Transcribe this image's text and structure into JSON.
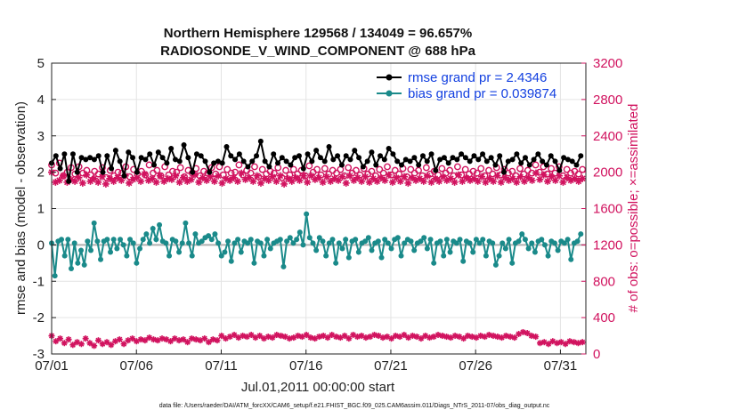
{
  "chart_data": {
    "type": "line",
    "title": [
      "Northern Hemisphere 129568 / 134049 = 96.657%",
      "RADIOSONDE_V_WIND_COMPONENT @ 688 hPa"
    ],
    "xlabel": "Jul.01,2011 00:00:00 start",
    "ylabel": "rmse and bias (model - observation)",
    "ylabel_right": "# of obs: o=possible; ×=assimilated",
    "xlim": [
      0,
      31.5
    ],
    "ylim": [
      -3,
      5
    ],
    "ylim_right": [
      0,
      3200
    ],
    "x_ticks": [
      {
        "v": 0,
        "label": "07/01"
      },
      {
        "v": 5,
        "label": "07/06"
      },
      {
        "v": 10,
        "label": "07/11"
      },
      {
        "v": 15,
        "label": "07/16"
      },
      {
        "v": 20,
        "label": "07/21"
      },
      {
        "v": 25,
        "label": "07/26"
      },
      {
        "v": 30,
        "label": "07/31"
      }
    ],
    "y_ticks": [
      -3,
      -2,
      -1,
      0,
      1,
      2,
      3,
      4,
      5
    ],
    "y_ticks_right": [
      0,
      400,
      800,
      1200,
      1600,
      2000,
      2400,
      2800,
      3200
    ],
    "grid": true,
    "legend_position": "top-right",
    "footer": "data file: /Users/raeder/DAI/ATM_forcXX/CAM6_setup/f.e21.FHIST_BGC.f09_025.CAM6assim.011/Diags_NTrS_2011-07/obs_diag_output.nc",
    "x_step": 0.25,
    "colors": {
      "rmse": "#000000",
      "bias": "#1a8a8a",
      "obs": "#d1135f",
      "zero": "#b0b0b0",
      "legend_text": "#1340e0"
    },
    "series": [
      {
        "name": "rmse grand pr = 2.4346",
        "values": [
          2.25,
          2.45,
          2.1,
          2.5,
          1.75,
          2.5,
          2.0,
          2.4,
          2.35,
          2.4,
          2.35,
          2.45,
          2.0,
          2.45,
          2.1,
          2.6,
          2.3,
          1.9,
          2.55,
          2.4,
          2.0,
          2.4,
          2.35,
          2.5,
          2.2,
          2.55,
          2.4,
          2.25,
          2.65,
          2.35,
          2.3,
          2.75,
          2.4,
          2.0,
          2.5,
          2.45,
          2.3,
          2.0,
          2.25,
          2.3,
          2.25,
          2.7,
          2.45,
          2.35,
          2.5,
          2.3,
          2.15,
          2.3,
          2.45,
          2.85,
          2.3,
          2.15,
          2.5,
          2.25,
          2.4,
          2.3,
          2.2,
          2.4,
          2.45,
          2.1,
          2.5,
          2.3,
          2.6,
          2.4,
          2.3,
          2.7,
          2.35,
          2.45,
          2.2,
          2.45,
          2.35,
          2.6,
          2.4,
          2.15,
          2.3,
          2.55,
          2.2,
          2.45,
          2.35,
          2.65,
          2.5,
          2.3,
          2.2,
          2.35,
          2.3,
          2.4,
          2.2,
          2.45,
          2.3,
          2.5,
          2.05,
          2.35,
          2.4,
          2.25,
          2.4,
          2.35,
          2.5,
          2.4,
          2.3,
          2.45,
          2.35,
          2.5,
          2.3,
          2.4,
          2.2,
          2.45,
          2.0,
          2.3,
          2.35,
          2.5,
          2.25,
          2.4,
          2.2,
          2.35,
          2.5,
          2.3,
          2.2,
          2.45,
          2.3,
          2.05,
          2.4,
          2.35,
          2.3,
          2.2,
          2.45,
          2.25,
          2.35,
          2.3,
          2.2,
          2.45,
          2.3,
          2.25,
          2.4,
          2.3,
          2.35,
          2.3,
          2.4,
          2.3,
          2.5,
          2.25,
          2.35,
          2.3,
          2.4,
          2.35,
          2.2,
          2.3,
          2.15,
          2.25,
          2.4,
          2.35,
          2.3,
          2.15,
          2.3,
          2.25,
          2.35,
          2.3,
          2.2,
          2.3,
          2.25,
          2.2,
          2.2,
          2.3,
          2.35,
          2.2,
          2.3,
          2.25,
          2.35,
          2.3,
          2.4,
          2.25,
          2.95,
          2.6,
          2.5,
          2.3,
          2.25,
          2.4,
          2.2,
          2.45,
          2.3,
          2.35,
          2.4,
          2.2,
          2.25,
          2.5,
          2.35,
          2.3,
          2.4,
          2.3,
          2.15,
          2.35,
          2.3,
          2.4,
          2.2,
          2.25,
          2.35,
          2.3,
          2.2,
          2.4,
          2.3,
          2.15,
          2.3,
          2.25,
          2.4,
          2.3,
          2.2,
          2.3,
          2.35,
          2.25,
          2.3,
          2.1,
          2.3,
          2.2,
          2.35,
          2.25,
          2.3,
          2.2,
          2.1,
          2.3,
          2.25,
          2.35,
          2.2,
          2.3,
          2.15,
          2.25,
          2.3,
          2.2,
          2.15,
          2.3,
          2.25,
          2.4,
          2.2,
          2.25,
          2.3,
          2.2,
          2.1,
          2.3,
          2.25,
          2.1,
          2.3,
          2.2,
          2.15,
          2.3,
          2.2,
          2.25,
          2.3,
          2.35,
          2.2,
          2.3,
          2.05,
          2.2,
          2.3,
          2.25,
          2.15,
          2.2,
          2.3,
          2.25,
          2.35,
          2.3,
          2.2,
          2.3,
          2.25,
          2.2,
          2.3,
          2.35,
          2.4,
          2.2,
          2.3,
          2.25,
          2.15,
          1.95,
          2.3,
          2.25,
          2.2,
          2.15,
          2.3,
          2.2,
          2.25,
          2.3,
          2.15,
          2.0,
          2.2,
          2.3,
          2.25,
          2.15,
          2.3,
          2.2,
          2.15,
          2.3,
          2.25,
          2.2,
          2.3,
          2.15,
          2.25,
          2.2,
          2.3,
          2.25,
          2.15,
          2.3,
          2.2,
          2.25,
          2.1,
          2.3,
          2.25,
          2.2,
          2.15,
          2.2,
          2.3,
          2.2,
          2.25,
          2.1,
          2.3,
          2.2,
          2.25,
          2.15,
          2.3,
          2.2,
          2.0,
          2.3,
          2.2,
          2.1,
          2.3,
          2.2,
          2.15,
          2.3,
          2.2,
          2.25,
          2.1,
          2.3,
          2.2,
          2.15,
          2.3,
          2.2,
          2.25,
          2.1,
          2.3,
          2.2,
          2.15,
          2.3,
          2.25,
          2.2,
          2.1,
          2.3,
          2.2,
          2.15,
          2.2,
          2.3,
          2.2,
          2.15,
          2.3,
          2.2,
          2.25,
          2.15,
          2.3,
          2.2,
          2.1,
          2.3,
          2.2,
          2.25,
          2.15,
          2.3,
          2.2,
          2.1,
          2.3,
          2.25,
          2.2,
          2.15,
          2.3,
          2.2,
          2.25,
          2.15,
          2.3,
          2.2,
          2.1,
          2.25,
          2.2,
          2.15,
          2.3,
          2.2,
          2.25,
          2.15,
          2.3,
          2.2,
          2.1,
          2.3,
          2.2,
          2.25,
          2.15,
          2.3,
          2.2,
          2.1,
          2.3,
          2.2,
          2.15,
          2.3,
          2.2,
          2.25,
          2.15,
          2.3,
          2.2,
          2.1,
          2.3,
          2.2,
          2.15
        ]
      },
      {
        "name": "bias grand pr = 0.039874",
        "values": [
          0.05,
          -0.85,
          0.1,
          0.15,
          -0.3,
          0.15,
          -0.65,
          0.05,
          -0.5,
          -0.15,
          -0.55,
          0.1,
          -0.15,
          0.6,
          0.1,
          -0.4,
          0.1,
          0.15,
          -0.2,
          0.15,
          -0.1,
          0.15,
          0.0,
          -0.3,
          0.15,
          0.05,
          -0.5,
          -0.1,
          0.15,
          0.3,
          0.05,
          0.45,
          0.15,
          0.55,
          0.1,
          0.05,
          -0.3,
          0.15,
          0.1,
          -0.2,
          0.05,
          0.6,
          0.05,
          -0.3,
          0.3,
          0.05,
          0.1,
          0.2,
          0.25,
          0.15,
          0.3,
          0.05,
          -0.3,
          -0.2,
          0.1,
          -0.45,
          0.05,
          0.15,
          -0.2,
          0.1,
          0.05,
          0.15,
          -0.5,
          0.1,
          0.05,
          -0.3,
          0.15,
          -0.1,
          0.05,
          0.1,
          0.15,
          -0.6,
          0.1,
          0.2,
          0.05,
          0.15,
          0.35,
          0.0,
          0.85,
          0.2,
          0.05,
          -0.15,
          0.2,
          0.1,
          -0.3,
          0.05,
          0.15,
          -0.5,
          0.05,
          -0.1,
          0.15,
          -0.35,
          0.1,
          0.15,
          -0.2,
          0.05,
          0.1,
          0.2,
          -0.15,
          0.05,
          0.1,
          -0.35,
          0.15,
          0.05,
          -0.1,
          0.15,
          0.2,
          -0.3,
          0.05,
          0.15,
          0.1,
          -0.15,
          0.05,
          0.1,
          0.2,
          -0.1,
          0.15,
          -0.5,
          0.05,
          0.1,
          -0.3,
          0.15,
          -0.2,
          0.1,
          0.05,
          0.15,
          -0.45,
          0.1,
          0.05,
          -0.2,
          0.15,
          0.05,
          0.15,
          -0.3,
          0.1,
          0.05,
          -0.55,
          -0.3,
          0.05,
          -0.1,
          0.15,
          -0.5,
          0.05,
          0.1,
          0.3,
          0.15,
          -0.1,
          0.05,
          -0.2,
          0.1,
          0.15,
          0.0,
          -0.3,
          0.1,
          0.05,
          -0.15,
          0.1,
          0.05,
          0.15,
          -0.4,
          0.05,
          0.1,
          0.3
        ]
      },
      {
        "name": "possible",
        "values": [
          2080,
          1990,
          2100,
          1960,
          2000,
          2050,
          1980,
          2060,
          1990,
          2020,
          1970,
          2010,
          1980,
          2050,
          1940,
          2020,
          1960,
          2000,
          1990,
          2060,
          1950,
          2030,
          1980,
          2010,
          1970,
          2080,
          1990,
          2020,
          1960,
          2060,
          1970,
          2010,
          2000,
          2050,
          1950,
          2020,
          1990,
          2040,
          1960,
          2010,
          1990,
          2050,
          1980,
          2060,
          1970,
          2030,
          1990,
          2000,
          2080,
          1970,
          2020,
          1990,
          2060,
          1950,
          2030,
          1980,
          2010,
          1990,
          2050,
          1940,
          2020,
          1970,
          2030,
          1980,
          2020,
          1960,
          2070,
          2000,
          2030,
          1970,
          2040,
          1980,
          2020,
          1990,
          2030,
          1960,
          2050,
          1990,
          2020,
          1970,
          2040,
          1980,
          2010,
          1960,
          2030,
          1990,
          2060,
          1970,
          2020,
          1980,
          2040,
          1950,
          2030,
          1990,
          2020,
          1960,
          2050,
          1980,
          2010,
          1970,
          2040,
          1990,
          2020,
          1960,
          2060,
          1970,
          2030,
          1980,
          2010,
          1990,
          2040,
          1960,
          2020,
          1980,
          2050,
          1970,
          2030,
          1990,
          2010,
          1960,
          2040,
          1980,
          2020,
          1990,
          2080,
          2000,
          2060,
          1980,
          2040,
          1990,
          2060,
          1960,
          2030,
          1990,
          2010,
          1980,
          2030
        ]
      },
      {
        "name": "assimilated",
        "values": [
          2000,
          1890,
          1910,
          1960,
          1890,
          1920,
          1900,
          1940,
          1880,
          1970,
          1900,
          1930,
          1890,
          1950,
          1870,
          1930,
          1900,
          1940,
          1910,
          1960,
          1880,
          1920,
          1940,
          1900,
          1980,
          1910,
          1930,
          1890,
          1960,
          1900,
          1930,
          1920,
          1960,
          1890,
          1940,
          1900,
          1920,
          1970,
          1890,
          1940,
          1910,
          1950,
          1900,
          1960,
          1880,
          1930,
          1910,
          1940,
          1900,
          1990,
          1920,
          1940,
          1900,
          1960,
          1880,
          1930,
          1910,
          1950,
          1900,
          1960,
          1870,
          1930,
          1900,
          1940,
          1910,
          1960,
          1890,
          1960,
          1920,
          1940,
          1890,
          1950,
          1900,
          1930,
          1910,
          1950,
          1880,
          1960,
          1910,
          1940,
          1900,
          1950,
          1890,
          1930,
          1900,
          1940,
          1910,
          1970,
          1890,
          1940,
          1900,
          1950,
          1880,
          1940,
          1910,
          1930,
          1900,
          1960,
          1890,
          1930,
          1900,
          1950,
          1910,
          1930,
          1890,
          1970,
          1900,
          1940,
          1910,
          1930,
          1900,
          1950,
          1890,
          1930,
          1900,
          1960,
          1890,
          1940,
          1910,
          1930,
          1890,
          1950,
          1900,
          1940,
          1910,
          1990,
          1920,
          1970,
          1900,
          1950,
          1910,
          1960,
          1890,
          1940,
          1910,
          1930,
          1900,
          1930
        ]
      },
      {
        "name": "bottom_possible",
        "values": [
          200,
          140,
          170,
          120,
          160,
          100,
          130,
          110,
          170,
          120,
          90,
          150,
          110,
          130,
          100,
          140,
          160,
          110,
          150,
          170,
          140,
          160,
          150,
          180,
          160,
          150,
          170,
          160,
          140,
          170,
          150,
          160,
          130,
          170,
          160,
          150,
          170,
          130,
          160,
          150,
          200,
          170,
          190,
          210,
          180,
          200,
          190,
          210,
          180,
          200,
          170,
          190,
          180,
          210,
          200,
          190,
          170,
          180,
          200,
          190,
          210,
          180,
          170,
          190,
          200,
          180,
          210,
          190,
          180,
          200,
          170,
          210,
          190,
          200,
          180,
          190,
          210,
          200,
          180,
          190,
          170,
          200,
          190,
          210,
          180,
          200,
          190,
          170,
          200,
          180,
          190,
          210,
          200,
          190,
          180,
          200,
          190,
          170,
          200,
          190,
          180,
          200,
          190,
          210,
          200,
          190,
          180,
          200,
          190,
          180,
          220,
          240,
          230,
          200,
          190,
          120,
          130,
          110,
          140,
          120,
          130,
          110,
          140,
          130,
          120,
          130
        ]
      }
    ]
  }
}
